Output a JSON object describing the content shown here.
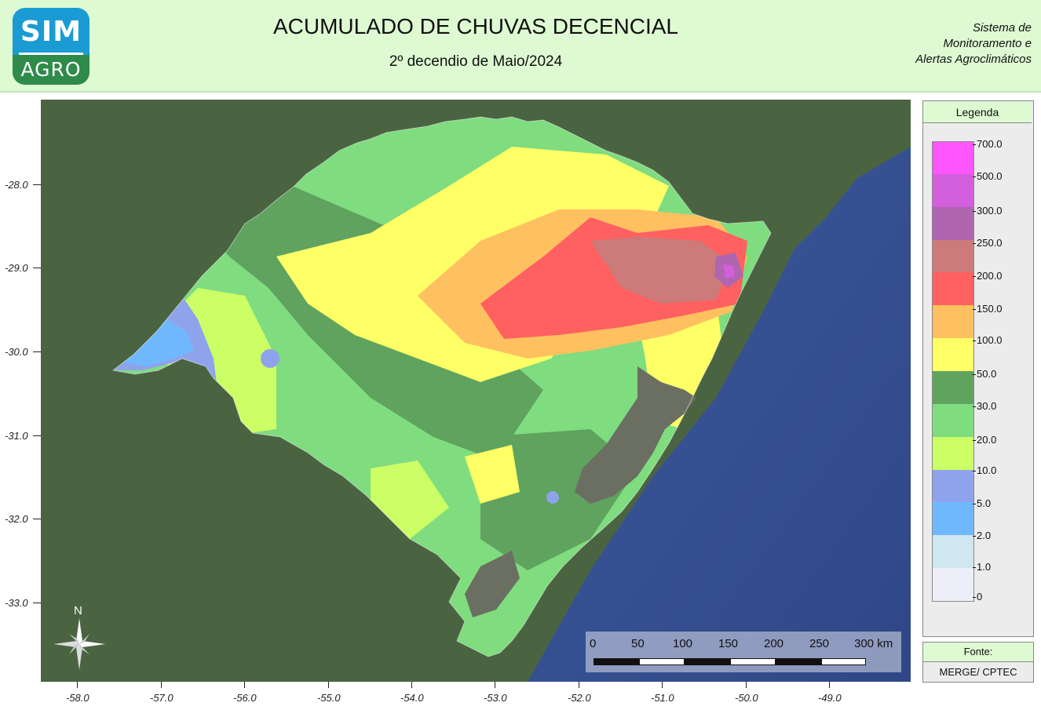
{
  "header": {
    "logo_top": "SIM",
    "logo_bottom": "AGRO",
    "title": "ACUMULADO DE CHUVAS DECENCIAL",
    "subtitle": "2º  decendio de Maio/2024",
    "system_line1": "Sistema de",
    "system_line2": "Monitoramento e",
    "system_line3": "Alertas Agroclimáticos"
  },
  "axes": {
    "latitudes": [
      "-28.0",
      "-29.0",
      "-30.0",
      "-31.0",
      "-32.0",
      "-33.0"
    ],
    "longitudes": [
      "-58.0",
      "-57.0",
      "-56.0",
      "-55.0",
      "-54.0",
      "-53.0",
      "-52.0",
      "-51.0",
      "-50.0",
      "-49.0"
    ]
  },
  "legend": {
    "title": "Legenda",
    "classes": [
      {
        "label": "700.0",
        "color": "#ff55ff"
      },
      {
        "label": "500.0",
        "color": "#d35fdc"
      },
      {
        "label": "300.0",
        "color": "#b065b0"
      },
      {
        "label": "250.0",
        "color": "#cc7a7a"
      },
      {
        "label": "200.0",
        "color": "#ff6060"
      },
      {
        "label": "150.0",
        "color": "#ffc060"
      },
      {
        "label": "100.0",
        "color": "#ffff66"
      },
      {
        "label": "50.0",
        "color": "#5fa35f"
      },
      {
        "label": "30.0",
        "color": "#7fdc7f"
      },
      {
        "label": "20.0",
        "color": "#ccff66"
      },
      {
        "label": "10.0",
        "color": "#8fa3ec"
      },
      {
        "label": "5.0",
        "color": "#6fb8ff"
      },
      {
        "label": "2.0",
        "color": "#cfe7ef"
      },
      {
        "label": "1.0",
        "color": "#eeeefa"
      },
      {
        "label": "0",
        "color": null
      }
    ]
  },
  "source": {
    "title": "Fonte:",
    "value": "MERGE/ CPTEC"
  },
  "scale": {
    "labels": [
      "0",
      "50",
      "100",
      "150",
      "200",
      "250",
      "300 km"
    ]
  },
  "north": {
    "label": "N"
  },
  "colors": {
    "ocean": "#3d57a0",
    "land": "#4a6442",
    "header_bg": "#defad2"
  }
}
